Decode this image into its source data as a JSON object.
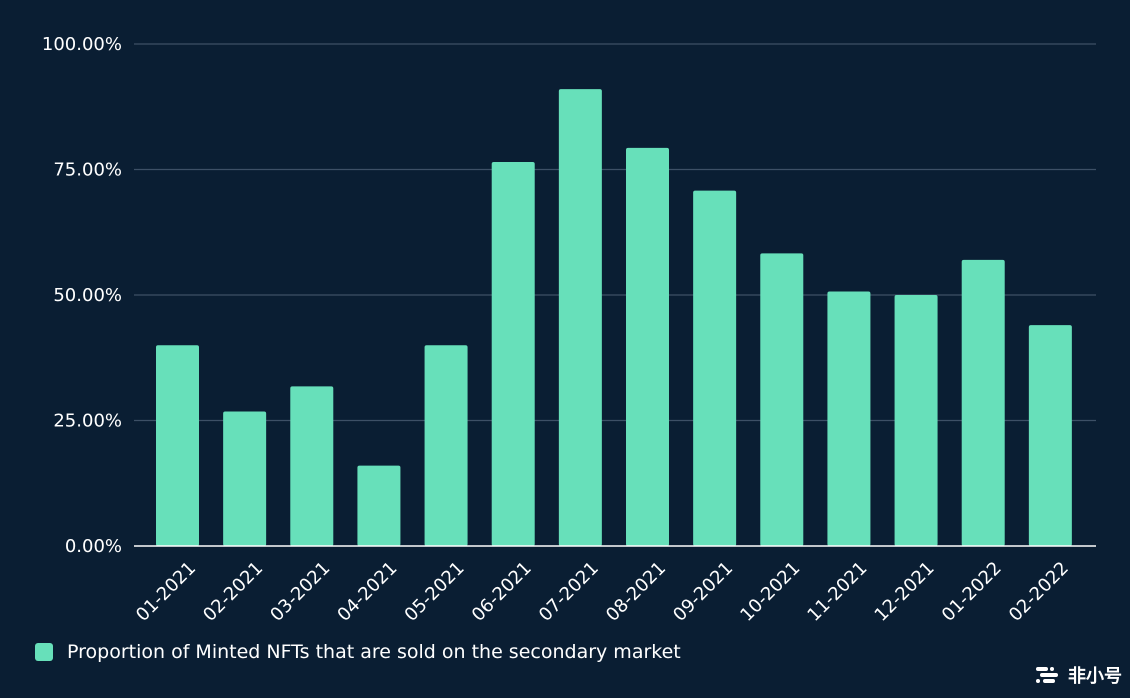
{
  "chart_data": {
    "type": "bar",
    "title": "",
    "xlabel": "",
    "ylabel": "",
    "categories": [
      "01-2021",
      "02-2021",
      "03-2021",
      "04-2021",
      "05-2021",
      "06-2021",
      "07-2021",
      "08-2021",
      "09-2021",
      "10-2021",
      "11-2021",
      "12-2021",
      "01-2022",
      "02-2022"
    ],
    "series": [
      {
        "name": "Proportion of Minted NFTs that are sold on the secondary market",
        "values": [
          40,
          26.8,
          31.8,
          16,
          40,
          76.5,
          91,
          79.3,
          70.8,
          58.3,
          50.7,
          50,
          57,
          44
        ]
      }
    ],
    "ylim": [
      0,
      100
    ],
    "yticks": [
      "0.00%",
      "25.00%",
      "50.00%",
      "75.00%",
      "100.00%"
    ],
    "grid": true,
    "legend_position": "bottom-left",
    "bar_color": "#67e0ba",
    "grid_color": "#3d5066",
    "axis_color": "#ffffff",
    "text_color": "#ffffff"
  },
  "legend": {
    "label": "Proportion of Minted NFTs that are sold on the secondary market"
  },
  "watermark": {
    "text": "非小号"
  }
}
